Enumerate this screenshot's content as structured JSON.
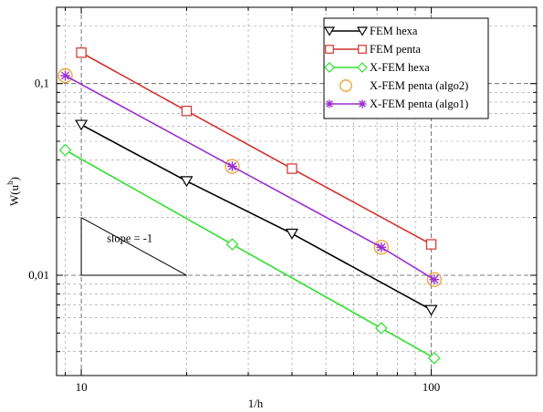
{
  "chart_data": {
    "type": "line",
    "title": "",
    "xlabel": "1/h",
    "ylabel": "W(u",
    "ylabel_superscript": "h",
    "ylabel_close": ")",
    "x_scale": "log",
    "y_scale": "log",
    "xlim": [
      8.5,
      200
    ],
    "ylim": [
      0.003,
      0.25
    ],
    "x_ticks": [
      {
        "value": 10,
        "label": "10"
      },
      {
        "value": 100,
        "label": "100"
      }
    ],
    "y_ticks": [
      {
        "value": 0.01,
        "label": "0,01"
      },
      {
        "value": 0.1,
        "label": "0,1"
      }
    ],
    "grid": true,
    "legend_position": "top-right",
    "series": [
      {
        "name": "FEM hexa",
        "color": "#000000",
        "marker": "triangle-down",
        "x": [
          10,
          20,
          40,
          100
        ],
        "y": [
          0.061,
          0.031,
          0.0165,
          0.0066
        ]
      },
      {
        "name": "FEM penta",
        "color": "#d2322d",
        "marker": "square",
        "x": [
          10,
          20,
          40,
          100
        ],
        "y": [
          0.145,
          0.072,
          0.036,
          0.0145
        ]
      },
      {
        "name": "X-FEM hexa",
        "color": "#2ee02e",
        "marker": "diamond",
        "x": [
          9,
          27,
          72,
          102
        ],
        "y": [
          0.045,
          0.0145,
          0.0053,
          0.0037
        ]
      },
      {
        "name": "X-FEM penta (algo2)",
        "color": "#f2a33a",
        "marker": "circle",
        "line": false,
        "x": [
          9,
          27,
          72,
          102
        ],
        "y": [
          0.11,
          0.037,
          0.014,
          0.0095
        ]
      },
      {
        "name": "X-FEM penta (algo1)",
        "color": "#9b2fd0",
        "marker": "asterisk",
        "x": [
          9,
          27,
          72,
          102
        ],
        "y": [
          0.11,
          0.037,
          0.014,
          0.0095
        ]
      }
    ],
    "annotations": [
      {
        "text": "slope = -1",
        "triangle": {
          "x1": 10,
          "x2": 20,
          "y_top": 0.02,
          "y_bottom": 0.01
        }
      }
    ]
  }
}
